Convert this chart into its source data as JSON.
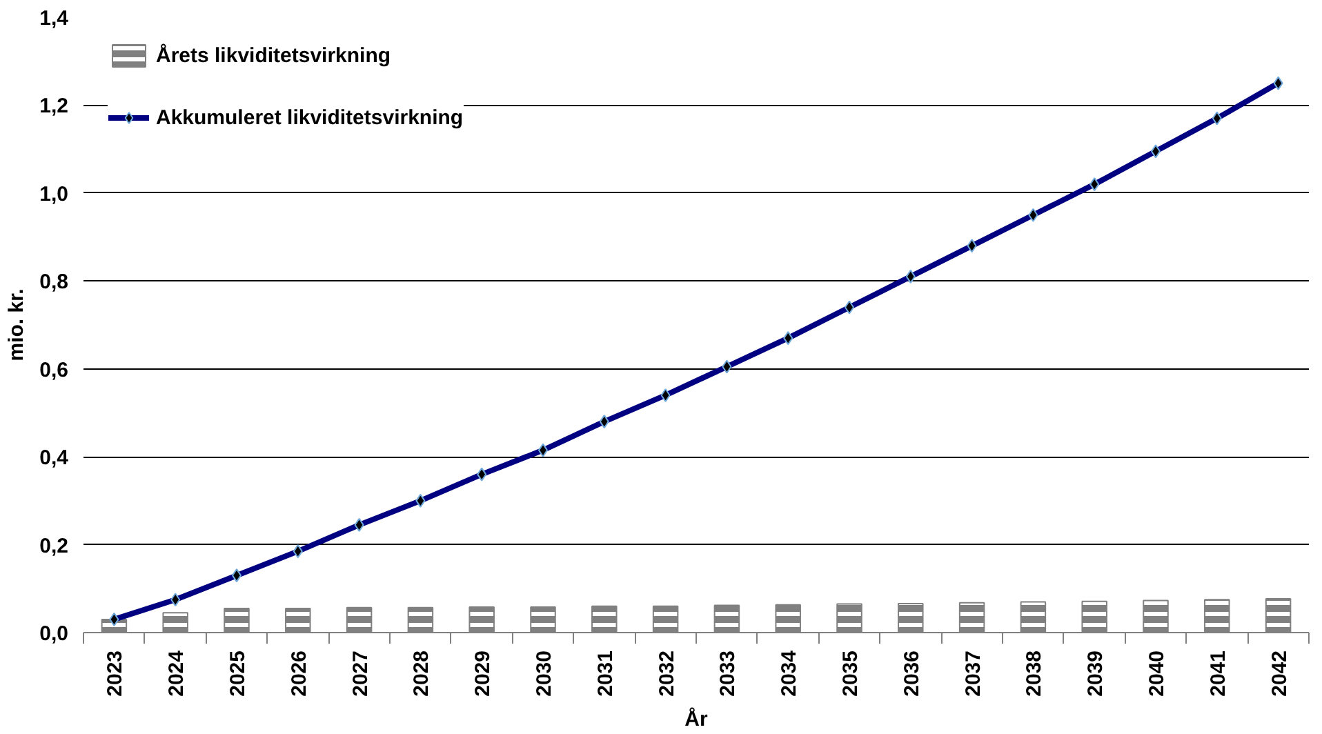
{
  "chart_data": {
    "type": "bar",
    "xlabel": "År",
    "ylabel": "mio. kr.",
    "categories": [
      "2023",
      "2024",
      "2025",
      "2026",
      "2027",
      "2028",
      "2029",
      "2030",
      "2031",
      "2032",
      "2033",
      "2034",
      "2035",
      "2036",
      "2037",
      "2038",
      "2039",
      "2040",
      "2041",
      "2042"
    ],
    "series": [
      {
        "name": "Årets likviditetsvirkning",
        "color": "#808080",
        "values": [
          0.03,
          0.045,
          0.055,
          0.055,
          0.057,
          0.057,
          0.058,
          0.058,
          0.06,
          0.06,
          0.062,
          0.063,
          0.065,
          0.066,
          0.068,
          0.07,
          0.071,
          0.073,
          0.075,
          0.077
        ]
      },
      {
        "name": "Akkumuleret likviditetsvirkning",
        "type": "line",
        "color": "#000080",
        "marker": "diamond",
        "values": [
          0.03,
          0.075,
          0.13,
          0.185,
          0.245,
          0.3,
          0.36,
          0.415,
          0.48,
          0.54,
          0.605,
          0.67,
          0.74,
          0.81,
          0.88,
          0.95,
          1.02,
          1.095,
          1.17,
          1.25
        ]
      }
    ],
    "ylim": [
      0,
      1.4
    ],
    "yticks": [
      {
        "value": 0,
        "label": "0,0"
      },
      {
        "value": 0.2,
        "label": "0,2"
      },
      {
        "value": 0.4,
        "label": "0,4"
      },
      {
        "value": 0.6,
        "label": "0,6"
      },
      {
        "value": 0.8,
        "label": "0,8"
      },
      {
        "value": 1.0,
        "label": "1,0"
      },
      {
        "value": 1.2,
        "label": "1,2"
      },
      {
        "value": 1.4,
        "label": "1,4"
      }
    ],
    "grid": "y",
    "legend": "top left"
  }
}
